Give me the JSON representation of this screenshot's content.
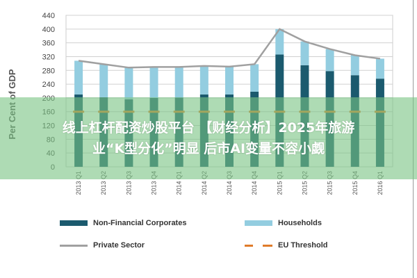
{
  "chart_data": {
    "type": "bar",
    "stacked": true,
    "ylabel": "Per Cent of GDP",
    "ylim": [
      0,
      440
    ],
    "yticks": [
      0,
      40,
      80,
      120,
      160,
      200,
      240,
      280,
      320,
      360,
      400,
      440
    ],
    "grid": true,
    "categories": [
      "2013 Q1",
      "2013 Q2",
      "2013 Q3",
      "2013 Q4",
      "2014 Q1",
      "2014 Q2",
      "2014 Q3",
      "2014 Q4",
      "2015 Q1",
      "2015 Q2",
      "2015 Q3",
      "2015 Q4",
      "2016 Q1"
    ],
    "series": [
      {
        "name": "Non-Financial Corporates",
        "kind": "bar",
        "color": "#1b5a6e",
        "values": [
          210,
          202,
          196,
          200,
          201,
          210,
          210,
          218,
          326,
          295,
          278,
          266,
          256
        ]
      },
      {
        "name": "Households",
        "kind": "bar",
        "color": "#93cde0",
        "values": [
          98,
          96,
          92,
          90,
          89,
          83,
          81,
          80,
          74,
          69,
          64,
          58,
          58
        ]
      },
      {
        "name": "Private Sector",
        "kind": "line",
        "color": "#a0a0a0",
        "values": [
          308,
          298,
          288,
          290,
          290,
          293,
          291,
          298,
          400,
          364,
          342,
          324,
          314
        ]
      },
      {
        "name": "EU Threshold",
        "kind": "dashed-line",
        "color": "#e07b2a",
        "values": [
          160,
          160,
          160,
          160,
          160,
          160,
          160,
          160,
          160,
          160,
          160,
          160,
          160
        ]
      }
    ],
    "legend_placement": "bottom"
  },
  "banner": {
    "line1": "线上杠杆配资炒股平台 【财经分析】2025年旅游",
    "line2": "业“K型分化”明显 后市AI变量不容小觑"
  }
}
